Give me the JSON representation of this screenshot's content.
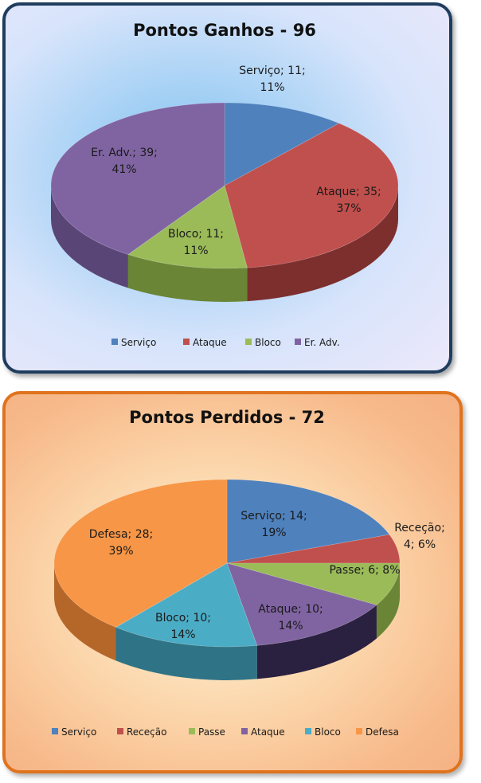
{
  "chart_data": [
    {
      "type": "pie",
      "title": "Pontos Ganhos - 96",
      "slices": [
        {
          "name": "Serviço",
          "value": 11,
          "label": [
            "Serviço; 11;",
            "11%"
          ],
          "color": "#4f81bd",
          "side": "#395e8a"
        },
        {
          "name": "Ataque",
          "value": 35,
          "label": [
            "Ataque; 35;",
            "37%"
          ],
          "color": "#c0504d",
          "side": "#7d2f2d"
        },
        {
          "name": "Bloco",
          "value": 11,
          "label": [
            "Bloco; 11;",
            "11%"
          ],
          "color": "#9bbb59",
          "side": "#6a8536"
        },
        {
          "name": "Er. Adv.",
          "value": 39,
          "label": [
            "Er. Adv.; 39;",
            "41%"
          ],
          "color": "#8064a2",
          "side": "#5a4577"
        }
      ],
      "legend": {
        "position": "bottom",
        "items": [
          "Serviço",
          "Ataque",
          "Bloco",
          "Er. Adv."
        ]
      }
    },
    {
      "type": "pie",
      "title": "Pontos Perdidos - 72",
      "slices": [
        {
          "name": "Serviço",
          "value": 14,
          "label": [
            "Serviço; 14;",
            "19%"
          ],
          "color": "#4f81bd",
          "side": "#395e8a"
        },
        {
          "name": "Receção",
          "value": 4,
          "label": [
            "Receção;",
            "4; 6%"
          ],
          "color": "#c0504d",
          "side": "#7d2f2d"
        },
        {
          "name": "Passe",
          "value": 6,
          "label": [
            "Passe; 6; 8%"
          ],
          "color": "#9bbb59",
          "side": "#6a8536"
        },
        {
          "name": "Ataque",
          "value": 10,
          "label": [
            "Ataque; 10;",
            "14%"
          ],
          "color": "#8064a2",
          "side": "#2a2140"
        },
        {
          "name": "Bloco",
          "value": 10,
          "label": [
            "Bloco; 10;",
            "14%"
          ],
          "color": "#4bacc6",
          "side": "#2f7486"
        },
        {
          "name": "Defesa",
          "value": 28,
          "label": [
            "Defesa; 28;",
            "39%"
          ],
          "color": "#f79646",
          "side": "#b5672a"
        }
      ],
      "legend": {
        "position": "bottom",
        "items": [
          "Serviço",
          "Receção",
          "Passe",
          "Ataque",
          "Bloco",
          "Defesa"
        ]
      }
    }
  ]
}
